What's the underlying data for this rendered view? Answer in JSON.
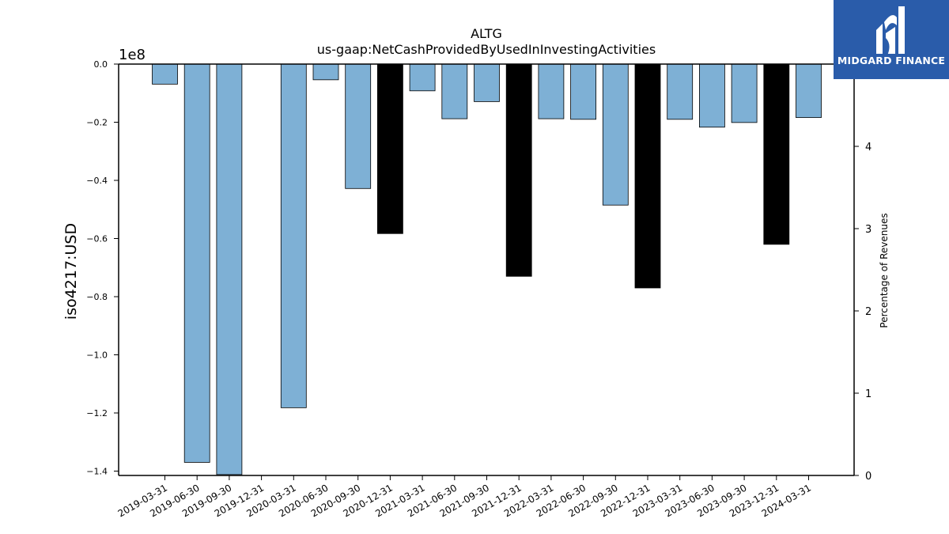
{
  "chart_data": {
    "type": "bar",
    "title": "ALTG",
    "subtitle": "us-gaap:NetCashProvidedByUsedInInvestingActivities",
    "ylabel": "iso4217:USD",
    "y2label": "Percentage of Revenues",
    "y_offset_label": "1e8",
    "ylim": [
      -141500000,
      0
    ],
    "y2lim": [
      0,
      5
    ],
    "yticks": [
      0.0,
      -0.2,
      -0.4,
      -0.6,
      -0.8,
      -1.0,
      -1.2,
      -1.4
    ],
    "ytick_labels": [
      "0.0",
      "−0.2",
      "−0.4",
      "−0.6",
      "−0.8",
      "−1.0",
      "−1.2",
      "−1.4"
    ],
    "y2ticks": [
      0,
      1,
      2,
      3,
      4
    ],
    "y2tick_labels": [
      "0",
      "1",
      "2",
      "3",
      "4"
    ],
    "categories": [
      "2019-03-31",
      "2019-06-30",
      "2019-09-30",
      "2019-12-31",
      "2020-03-31",
      "2020-06-30",
      "2020-09-30",
      "2020-12-31",
      "2021-03-31",
      "2021-06-30",
      "2021-09-30",
      "2021-12-31",
      "2022-03-31",
      "2022-06-30",
      "2022-09-30",
      "2022-12-31",
      "2023-03-31",
      "2023-06-30",
      "2023-09-30",
      "2023-12-31",
      "2024-03-31"
    ],
    "values": [
      -6900000,
      -137000000,
      -141200000,
      null,
      -118200000,
      -5400000,
      -42800000,
      -58300000,
      -9200000,
      -18800000,
      -12900000,
      -73000000,
      -18800000,
      -19000000,
      -48500000,
      -77000000,
      -19000000,
      -21700000,
      -20100000,
      -62000000,
      -18400000
    ],
    "year_end": [
      false,
      false,
      false,
      true,
      false,
      false,
      false,
      true,
      false,
      false,
      false,
      true,
      false,
      false,
      false,
      true,
      false,
      false,
      false,
      true,
      false
    ],
    "colors": {
      "quarter": "#7eb0d5",
      "year_end": "#000000",
      "edge": "#000000"
    },
    "grid": false
  },
  "logo": {
    "text": "MIDGARD FINANCE",
    "background": "#2a5caa"
  }
}
